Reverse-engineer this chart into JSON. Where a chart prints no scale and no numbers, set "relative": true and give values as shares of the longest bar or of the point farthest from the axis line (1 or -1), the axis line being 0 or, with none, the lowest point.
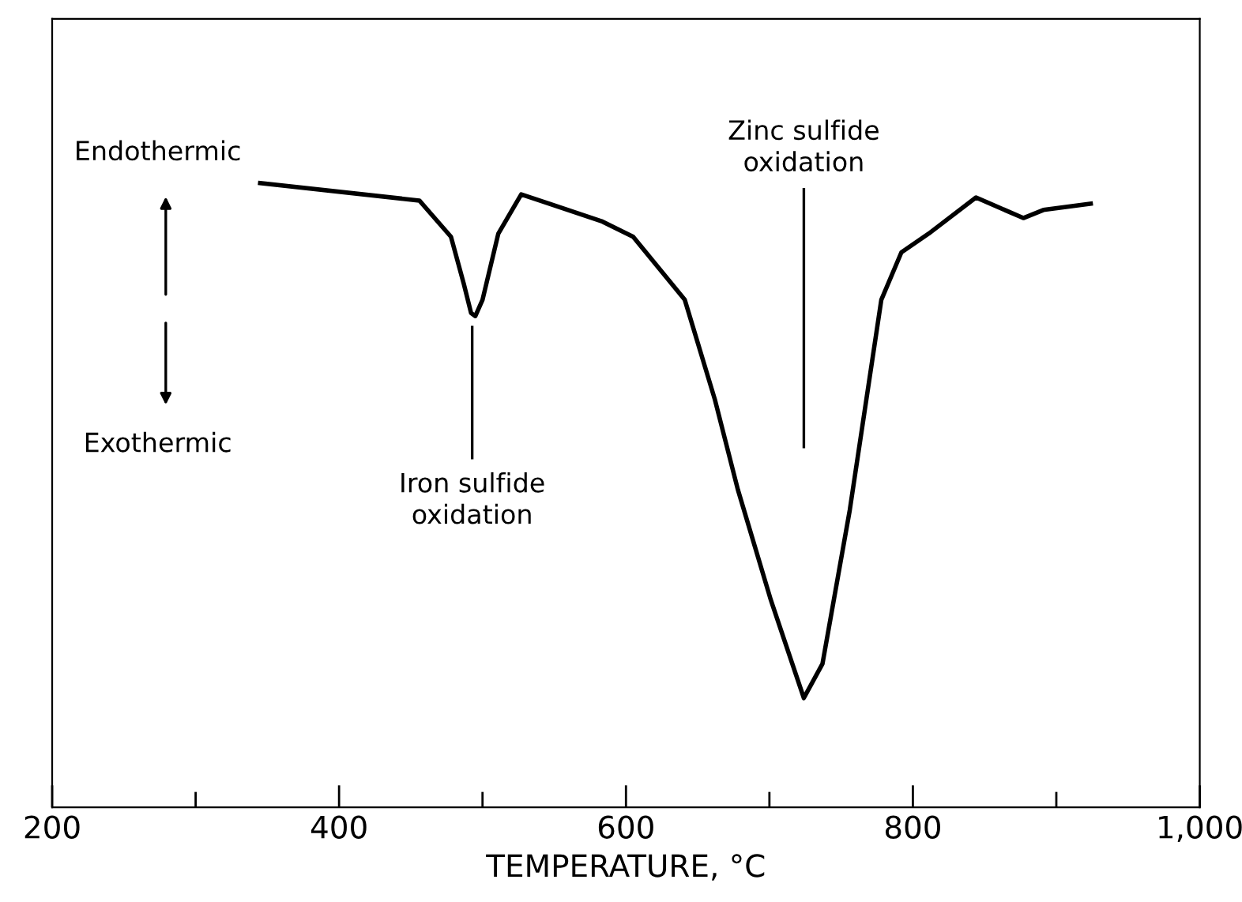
{
  "chart_data": {
    "type": "line",
    "relative": true,
    "xlabel": "TEMPERATURE, °C",
    "x": [
      345,
      456,
      478,
      487,
      492,
      495,
      500,
      511,
      527,
      583,
      605,
      641,
      662,
      678,
      701,
      724,
      737,
      756,
      778,
      792,
      811,
      844,
      877,
      891,
      924
    ],
    "series": [
      {
        "color": "#000000",
        "values": [
          1.0,
          0.972,
          0.914,
          0.838,
          0.792,
          0.787,
          0.813,
          0.919,
          0.982,
          0.939,
          0.914,
          0.813,
          0.653,
          0.509,
          0.332,
          0.175,
          0.23,
          0.476,
          0.813,
          0.889,
          0.919,
          0.977,
          0.944,
          0.957,
          0.967
        ]
      }
    ],
    "xlim": [
      200,
      1000
    ],
    "xticks": [
      200,
      {
        "value": 300,
        "label": null
      },
      400,
      {
        "value": 500,
        "label": null
      },
      600,
      {
        "value": 700,
        "label": null
      },
      800,
      {
        "value": 900,
        "label": null
      },
      {
        "value": 1000,
        "label": "1,000"
      }
    ],
    "annotations": [
      "Endothermic",
      "Exothermic",
      "Iron sulfide\noxidation",
      "Zinc sulfide\noxidation"
    ],
    "grid": false,
    "legend": false,
    "marker": "none",
    "line_style": "solid"
  }
}
